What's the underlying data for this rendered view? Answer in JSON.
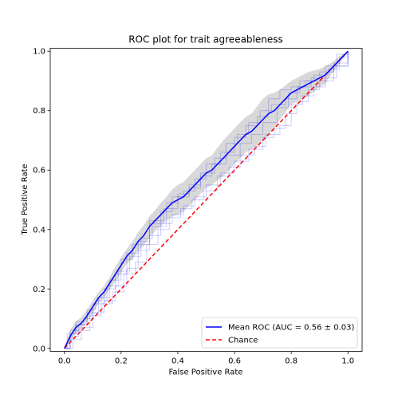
{
  "chart_data": {
    "type": "line",
    "title": "ROC plot for trait agreeableness",
    "xlabel": "False Positive Rate",
    "ylabel": "True Positive Rate",
    "xlim": [
      -0.05,
      1.05
    ],
    "ylim": [
      -0.01,
      1.01
    ],
    "xticks": [
      "0.0",
      "0.2",
      "0.4",
      "0.6",
      "0.8",
      "1.0"
    ],
    "yticks": [
      "0.0",
      "0.2",
      "0.4",
      "0.6",
      "0.8",
      "1.0"
    ],
    "grid": false,
    "legend_position": "bottom-right",
    "series": [
      {
        "name": "Mean ROC (AUC = 0.56 ± 0.03)",
        "color": "#0000ff",
        "style": "solid",
        "x": [
          0.0,
          0.02,
          0.04,
          0.06,
          0.08,
          0.1,
          0.12,
          0.14,
          0.16,
          0.18,
          0.2,
          0.22,
          0.24,
          0.26,
          0.28,
          0.3,
          0.32,
          0.34,
          0.36,
          0.38,
          0.4,
          0.42,
          0.44,
          0.46,
          0.48,
          0.5,
          0.52,
          0.54,
          0.56,
          0.58,
          0.6,
          0.62,
          0.64,
          0.66,
          0.68,
          0.7,
          0.72,
          0.74,
          0.76,
          0.78,
          0.8,
          0.82,
          0.84,
          0.86,
          0.88,
          0.9,
          0.92,
          0.94,
          0.96,
          0.98,
          1.0
        ],
        "y": [
          0.0,
          0.04,
          0.07,
          0.085,
          0.11,
          0.14,
          0.17,
          0.19,
          0.22,
          0.25,
          0.28,
          0.31,
          0.33,
          0.36,
          0.38,
          0.41,
          0.43,
          0.45,
          0.47,
          0.49,
          0.5,
          0.51,
          0.53,
          0.55,
          0.57,
          0.59,
          0.6,
          0.62,
          0.64,
          0.66,
          0.68,
          0.7,
          0.72,
          0.73,
          0.75,
          0.77,
          0.79,
          0.8,
          0.82,
          0.84,
          0.86,
          0.87,
          0.88,
          0.89,
          0.9,
          0.91,
          0.92,
          0.94,
          0.96,
          0.98,
          1.0
        ]
      },
      {
        "name": "Chance",
        "color": "#ff0000",
        "style": "dashed",
        "x": [
          0.0,
          1.0
        ],
        "y": [
          0.0,
          1.0
        ]
      }
    ],
    "std_band": {
      "color": "#a9a9a9",
      "upper": [
        0.0,
        0.06,
        0.09,
        0.105,
        0.13,
        0.16,
        0.19,
        0.21,
        0.24,
        0.275,
        0.305,
        0.335,
        0.36,
        0.39,
        0.415,
        0.445,
        0.465,
        0.49,
        0.51,
        0.535,
        0.55,
        0.56,
        0.58,
        0.6,
        0.62,
        0.64,
        0.65,
        0.675,
        0.7,
        0.72,
        0.74,
        0.76,
        0.78,
        0.79,
        0.815,
        0.84,
        0.855,
        0.86,
        0.87,
        0.885,
        0.9,
        0.91,
        0.92,
        0.93,
        0.935,
        0.94,
        0.95,
        0.96,
        0.975,
        0.99,
        1.0
      ],
      "lower": [
        0.0,
        0.02,
        0.05,
        0.065,
        0.09,
        0.12,
        0.15,
        0.17,
        0.2,
        0.225,
        0.255,
        0.285,
        0.3,
        0.33,
        0.345,
        0.375,
        0.395,
        0.41,
        0.43,
        0.445,
        0.45,
        0.46,
        0.48,
        0.5,
        0.52,
        0.54,
        0.55,
        0.565,
        0.58,
        0.6,
        0.62,
        0.64,
        0.66,
        0.67,
        0.685,
        0.7,
        0.725,
        0.74,
        0.77,
        0.795,
        0.82,
        0.83,
        0.84,
        0.85,
        0.865,
        0.88,
        0.89,
        0.92,
        0.945,
        0.97,
        1.0
      ]
    },
    "fold_curves": {
      "color": "#0000ff",
      "opacity": 0.2,
      "curves": [
        [
          [
            0,
            0
          ],
          [
            0.02,
            0.06
          ],
          [
            0.05,
            0.08
          ],
          [
            0.08,
            0.12
          ],
          [
            0.12,
            0.17
          ],
          [
            0.16,
            0.23
          ],
          [
            0.2,
            0.3
          ],
          [
            0.24,
            0.35
          ],
          [
            0.3,
            0.42
          ],
          [
            0.34,
            0.46
          ],
          [
            0.38,
            0.51
          ],
          [
            0.42,
            0.53
          ],
          [
            0.46,
            0.57
          ],
          [
            0.5,
            0.62
          ],
          [
            0.55,
            0.66
          ],
          [
            0.6,
            0.71
          ],
          [
            0.64,
            0.75
          ],
          [
            0.68,
            0.78
          ],
          [
            0.72,
            0.84
          ],
          [
            0.76,
            0.87
          ],
          [
            0.8,
            0.88
          ],
          [
            0.85,
            0.9
          ],
          [
            0.9,
            0.93
          ],
          [
            0.95,
            0.96
          ],
          [
            1,
            1
          ]
        ],
        [
          [
            0,
            0
          ],
          [
            0.03,
            0.03
          ],
          [
            0.06,
            0.07
          ],
          [
            0.1,
            0.12
          ],
          [
            0.14,
            0.16
          ],
          [
            0.18,
            0.21
          ],
          [
            0.22,
            0.27
          ],
          [
            0.26,
            0.33
          ],
          [
            0.3,
            0.38
          ],
          [
            0.34,
            0.42
          ],
          [
            0.38,
            0.45
          ],
          [
            0.42,
            0.48
          ],
          [
            0.46,
            0.51
          ],
          [
            0.5,
            0.55
          ],
          [
            0.55,
            0.59
          ],
          [
            0.6,
            0.63
          ],
          [
            0.65,
            0.67
          ],
          [
            0.7,
            0.71
          ],
          [
            0.74,
            0.74
          ],
          [
            0.78,
            0.79
          ],
          [
            0.82,
            0.83
          ],
          [
            0.86,
            0.87
          ],
          [
            0.9,
            0.9
          ],
          [
            0.95,
            0.95
          ],
          [
            1,
            1
          ]
        ],
        [
          [
            0,
            0
          ],
          [
            0.01,
            0.05
          ],
          [
            0.04,
            0.09
          ],
          [
            0.07,
            0.1
          ],
          [
            0.1,
            0.15
          ],
          [
            0.14,
            0.2
          ],
          [
            0.18,
            0.25
          ],
          [
            0.22,
            0.32
          ],
          [
            0.26,
            0.36
          ],
          [
            0.3,
            0.43
          ],
          [
            0.35,
            0.47
          ],
          [
            0.4,
            0.51
          ],
          [
            0.44,
            0.55
          ],
          [
            0.48,
            0.58
          ],
          [
            0.52,
            0.62
          ],
          [
            0.57,
            0.65
          ],
          [
            0.62,
            0.69
          ],
          [
            0.66,
            0.72
          ],
          [
            0.7,
            0.76
          ],
          [
            0.75,
            0.81
          ],
          [
            0.79,
            0.86
          ],
          [
            0.83,
            0.9
          ],
          [
            0.88,
            0.92
          ],
          [
            0.93,
            0.94
          ],
          [
            0.97,
            0.98
          ],
          [
            1,
            1
          ]
        ],
        [
          [
            0,
            0
          ],
          [
            0.02,
            0.04
          ],
          [
            0.05,
            0.06
          ],
          [
            0.09,
            0.11
          ],
          [
            0.13,
            0.15
          ],
          [
            0.17,
            0.19
          ],
          [
            0.21,
            0.25
          ],
          [
            0.25,
            0.29
          ],
          [
            0.29,
            0.35
          ],
          [
            0.33,
            0.4
          ],
          [
            0.37,
            0.44
          ],
          [
            0.41,
            0.47
          ],
          [
            0.45,
            0.5
          ],
          [
            0.49,
            0.53
          ],
          [
            0.54,
            0.58
          ],
          [
            0.58,
            0.61
          ],
          [
            0.62,
            0.65
          ],
          [
            0.67,
            0.68
          ],
          [
            0.71,
            0.72
          ],
          [
            0.76,
            0.75
          ],
          [
            0.8,
            0.82
          ],
          [
            0.84,
            0.85
          ],
          [
            0.88,
            0.88
          ],
          [
            0.92,
            0.91
          ],
          [
            0.96,
            0.95
          ],
          [
            1,
            1
          ]
        ],
        [
          [
            0,
            0
          ],
          [
            0.02,
            0.05
          ],
          [
            0.04,
            0.08
          ],
          [
            0.08,
            0.13
          ],
          [
            0.11,
            0.16
          ],
          [
            0.15,
            0.21
          ],
          [
            0.19,
            0.26
          ],
          [
            0.23,
            0.31
          ],
          [
            0.27,
            0.37
          ],
          [
            0.31,
            0.41
          ],
          [
            0.36,
            0.49
          ],
          [
            0.4,
            0.52
          ],
          [
            0.44,
            0.54
          ],
          [
            0.48,
            0.59
          ],
          [
            0.53,
            0.64
          ],
          [
            0.57,
            0.69
          ],
          [
            0.61,
            0.72
          ],
          [
            0.65,
            0.76
          ],
          [
            0.69,
            0.8
          ],
          [
            0.73,
            0.82
          ],
          [
            0.78,
            0.84
          ],
          [
            0.82,
            0.88
          ],
          [
            0.87,
            0.91
          ],
          [
            0.92,
            0.95
          ],
          [
            0.96,
            0.99
          ],
          [
            1,
            1
          ]
        ]
      ]
    }
  }
}
